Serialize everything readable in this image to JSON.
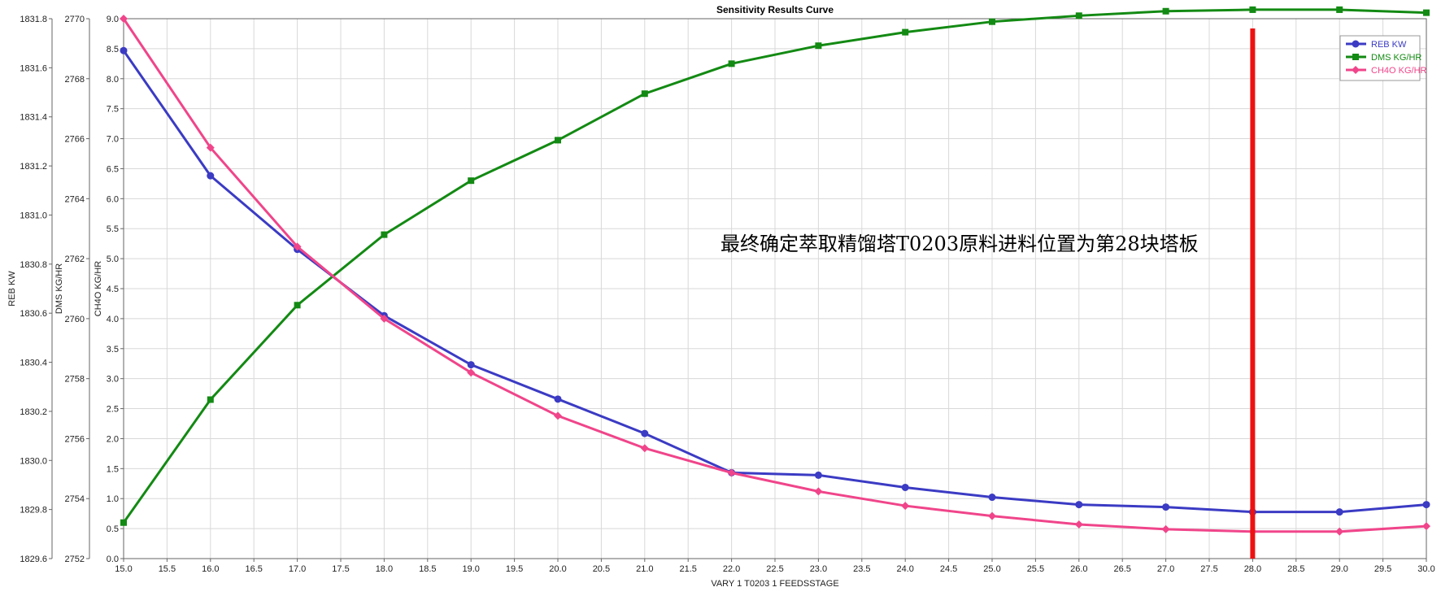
{
  "chart_data": {
    "type": "line",
    "title": "Sensitivity Results Curve",
    "xlabel": "VARY   1 T0203 1 FEEDSSTAGE",
    "xlim": [
      15.0,
      30.0
    ],
    "xticks": [
      "15.0",
      "15.5",
      "16.0",
      "16.5",
      "17.0",
      "17.5",
      "18.0",
      "18.5",
      "19.0",
      "19.5",
      "20.0",
      "20.5",
      "21.0",
      "21.5",
      "22.0",
      "22.5",
      "23.0",
      "23.5",
      "24.0",
      "24.5",
      "25.0",
      "25.5",
      "26.0",
      "26.5",
      "27.0",
      "27.5",
      "28.0",
      "28.5",
      "29.0",
      "29.5",
      "30.0"
    ],
    "grid": true,
    "legend_position": "top-right",
    "y_axes": [
      {
        "label": "REB KW",
        "range": [
          1829.6,
          1831.8
        ],
        "ticks": [
          "1829.6",
          "1829.8",
          "1830.0",
          "1830.2",
          "1830.4",
          "1830.6",
          "1830.8",
          "1831.0",
          "1831.2",
          "1831.4",
          "1831.6",
          "1831.8"
        ]
      },
      {
        "label": "DMS KG/HR",
        "range": [
          2752,
          2770
        ],
        "ticks": [
          "2752",
          "2754",
          "2756",
          "2758",
          "2760",
          "2762",
          "2764",
          "2766",
          "2768",
          "2770"
        ]
      },
      {
        "label": "CH4O KG/HR",
        "range": [
          0.0,
          9.0
        ],
        "ticks": [
          "0.0",
          "0.5",
          "1.0",
          "1.5",
          "2.0",
          "2.5",
          "3.0",
          "3.5",
          "4.0",
          "4.5",
          "5.0",
          "5.5",
          "6.0",
          "6.5",
          "7.0",
          "7.5",
          "8.0",
          "8.5",
          "9.0"
        ]
      }
    ],
    "x": [
      15,
      16,
      17,
      18,
      19,
      20,
      21,
      22,
      23,
      24,
      25,
      26,
      27,
      28,
      29,
      30
    ],
    "series": [
      {
        "name": "REB KW",
        "axis": 0,
        "color": "#3b3bc4",
        "marker": "circle",
        "values": [
          1831.67,
          1831.16,
          1830.86,
          1830.59,
          1830.39,
          1830.25,
          1830.11,
          1829.95,
          1829.94,
          1829.89,
          1829.85,
          1829.82,
          1829.81,
          1829.79,
          1829.79,
          1829.82
        ]
      },
      {
        "name": "DMS KG/HR",
        "axis": 1,
        "color": "#138a13",
        "marker": "square",
        "values": [
          2753.2,
          2757.3,
          2760.45,
          2762.8,
          2764.6,
          2765.95,
          2767.5,
          2768.5,
          2769.1,
          2769.55,
          2769.9,
          2770.1,
          2770.25,
          2770.3,
          2770.3,
          2770.2
        ]
      },
      {
        "name": "CH4O KG/HR",
        "axis": 2,
        "color": "#f0458a",
        "marker": "diamond",
        "values": [
          9.0,
          6.85,
          5.2,
          4.0,
          3.1,
          2.38,
          1.84,
          1.43,
          1.12,
          0.88,
          0.71,
          0.57,
          0.49,
          0.45,
          0.45,
          0.54
        ]
      }
    ],
    "annotations": [
      {
        "type": "vertical-line",
        "x": 28,
        "color": "#ee1111"
      },
      {
        "type": "text",
        "text": "最终确定萃取精馏塔T0203原料进料位置为第28块塔板"
      }
    ]
  }
}
